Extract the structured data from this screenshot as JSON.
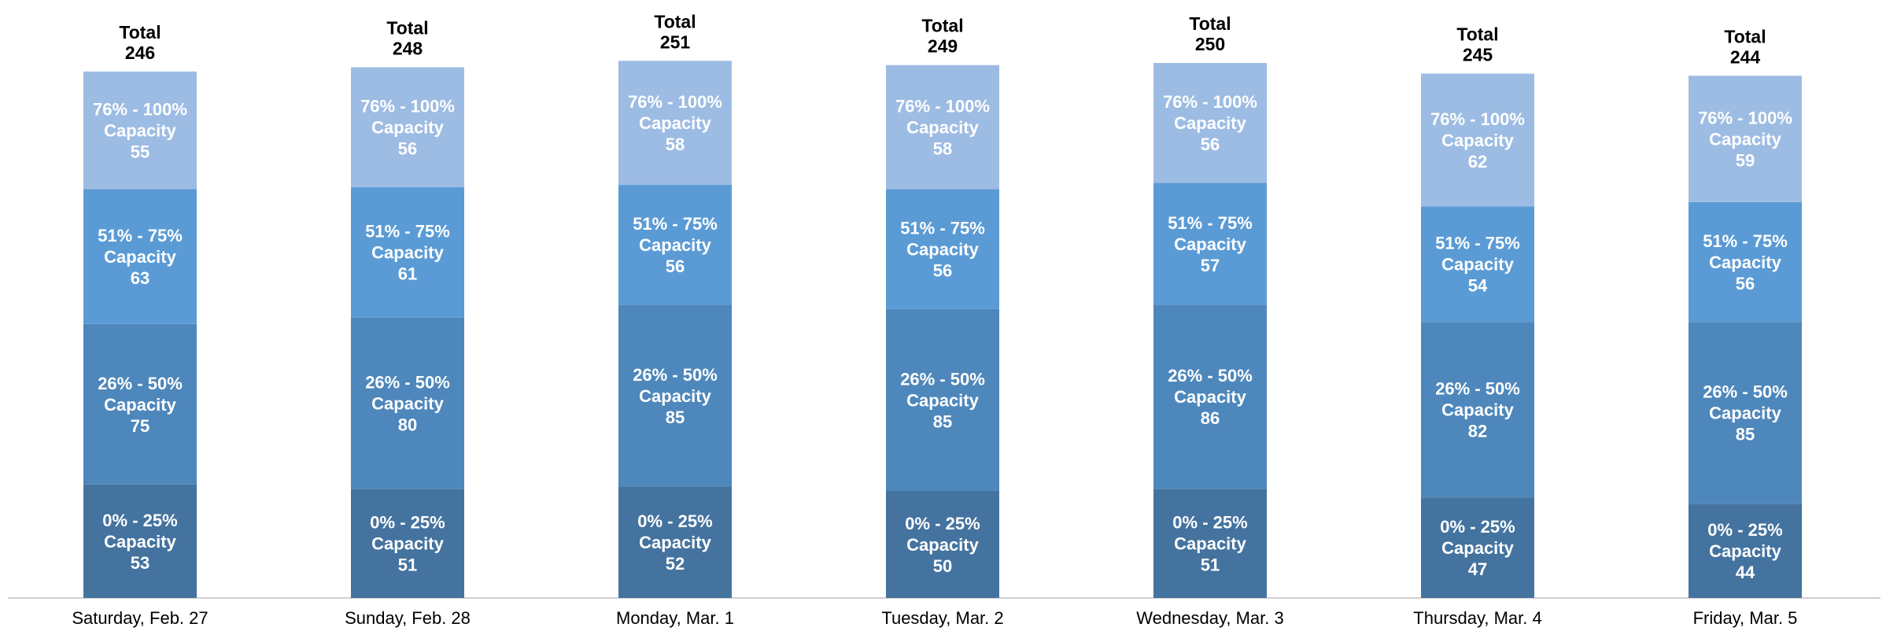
{
  "chart_data": {
    "type": "bar",
    "stacked": true,
    "categories": [
      "Saturday, Feb. 27",
      "Sunday, Feb. 28",
      "Monday, Mar. 1",
      "Tuesday, Mar. 2",
      "Wednesday, Mar. 3",
      "Thursday, Mar. 4",
      "Friday, Mar. 5"
    ],
    "series": [
      {
        "name": "0% - 25%|Capacity",
        "color": "#44739f",
        "values": [
          53,
          51,
          52,
          50,
          51,
          47,
          44
        ]
      },
      {
        "name": "26% - 50%|Capacity",
        "color": "#4e87bb",
        "values": [
          75,
          80,
          85,
          85,
          86,
          82,
          85
        ]
      },
      {
        "name": "51% - 75%|Capacity",
        "color": "#5b9bd5",
        "values": [
          63,
          61,
          56,
          56,
          57,
          54,
          56
        ]
      },
      {
        "name": "76% - 100%|Capacity",
        "color": "#9dbce3",
        "values": [
          55,
          56,
          58,
          58,
          56,
          62,
          59
        ]
      }
    ],
    "total_label": "Total",
    "totals": [
      246,
      248,
      251,
      249,
      250,
      245,
      244
    ],
    "xlabel": "",
    "ylabel": "",
    "grid": false,
    "legend": "none"
  }
}
